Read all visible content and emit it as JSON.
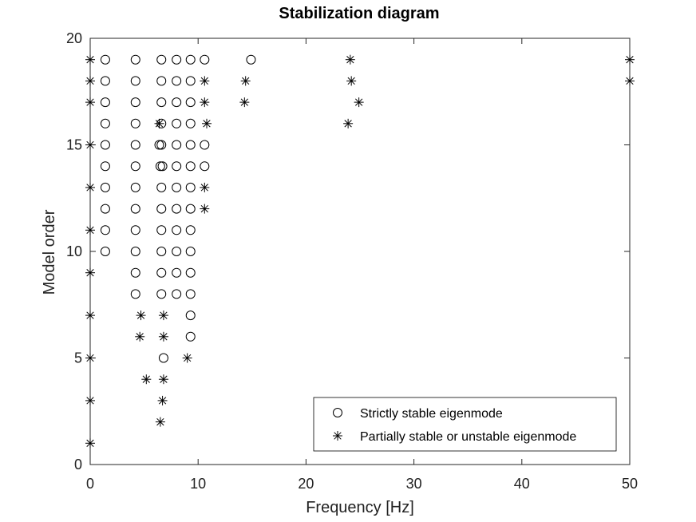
{
  "chart_data": {
    "type": "scatter",
    "title": "Stabilization diagram",
    "xlabel": "Frequency [Hz]",
    "ylabel": "Model order",
    "xlim": [
      0,
      50
    ],
    "ylim": [
      0,
      20
    ],
    "xticks": [
      0,
      10,
      20,
      30,
      40,
      50
    ],
    "yticks": [
      0,
      5,
      10,
      15,
      20
    ],
    "grid": false,
    "legend_position": "bottom-right",
    "series": [
      {
        "name": "Strictly stable eigenmode",
        "marker": "circle",
        "color": "#000000",
        "points": [
          [
            1.4,
            19
          ],
          [
            4.2,
            19
          ],
          [
            6.6,
            19
          ],
          [
            8.0,
            19
          ],
          [
            9.3,
            19
          ],
          [
            10.6,
            19
          ],
          [
            14.9,
            19
          ],
          [
            1.4,
            18
          ],
          [
            4.2,
            18
          ],
          [
            6.6,
            18
          ],
          [
            8.0,
            18
          ],
          [
            9.3,
            18
          ],
          [
            1.4,
            17
          ],
          [
            4.2,
            17
          ],
          [
            6.6,
            17
          ],
          [
            8.0,
            17
          ],
          [
            9.3,
            17
          ],
          [
            1.4,
            16
          ],
          [
            4.2,
            16
          ],
          [
            6.6,
            16
          ],
          [
            8.0,
            16
          ],
          [
            9.3,
            16
          ],
          [
            1.4,
            15
          ],
          [
            4.2,
            15
          ],
          [
            6.4,
            15
          ],
          [
            6.6,
            15
          ],
          [
            8.0,
            15
          ],
          [
            9.3,
            15
          ],
          [
            10.6,
            15
          ],
          [
            1.4,
            14
          ],
          [
            4.2,
            14
          ],
          [
            6.5,
            14
          ],
          [
            6.7,
            14
          ],
          [
            8.0,
            14
          ],
          [
            9.3,
            14
          ],
          [
            10.6,
            14
          ],
          [
            1.4,
            13
          ],
          [
            4.2,
            13
          ],
          [
            6.6,
            13
          ],
          [
            8.0,
            13
          ],
          [
            9.3,
            13
          ],
          [
            1.4,
            12
          ],
          [
            4.2,
            12
          ],
          [
            6.6,
            12
          ],
          [
            8.0,
            12
          ],
          [
            9.3,
            12
          ],
          [
            1.4,
            11
          ],
          [
            4.2,
            11
          ],
          [
            6.6,
            11
          ],
          [
            8.0,
            11
          ],
          [
            9.3,
            11
          ],
          [
            1.4,
            10
          ],
          [
            4.2,
            10
          ],
          [
            6.6,
            10
          ],
          [
            8.0,
            10
          ],
          [
            9.3,
            10
          ],
          [
            4.2,
            9
          ],
          [
            6.6,
            9
          ],
          [
            8.0,
            9
          ],
          [
            9.3,
            9
          ],
          [
            4.2,
            8
          ],
          [
            6.6,
            8
          ],
          [
            8.0,
            8
          ],
          [
            9.3,
            8
          ],
          [
            9.3,
            7
          ],
          [
            9.3,
            6
          ],
          [
            6.8,
            5
          ]
        ]
      },
      {
        "name": "Partially stable or unstable eigenmode",
        "marker": "asterisk",
        "color": "#000000",
        "points": [
          [
            0,
            19
          ],
          [
            24.1,
            19
          ],
          [
            50,
            19
          ],
          [
            0,
            18
          ],
          [
            10.6,
            18
          ],
          [
            14.4,
            18
          ],
          [
            24.2,
            18
          ],
          [
            50,
            18
          ],
          [
            0,
            17
          ],
          [
            10.6,
            17
          ],
          [
            14.3,
            17
          ],
          [
            24.9,
            17
          ],
          [
            6.4,
            16
          ],
          [
            10.8,
            16
          ],
          [
            23.9,
            16
          ],
          [
            0,
            15
          ],
          [
            0,
            13
          ],
          [
            10.6,
            13
          ],
          [
            10.6,
            12
          ],
          [
            0,
            11
          ],
          [
            0,
            9
          ],
          [
            4.7,
            7
          ],
          [
            6.8,
            7
          ],
          [
            0,
            7
          ],
          [
            4.6,
            6
          ],
          [
            6.8,
            6
          ],
          [
            0,
            5
          ],
          [
            9.0,
            5
          ],
          [
            5.2,
            4
          ],
          [
            6.8,
            4
          ],
          [
            0,
            3
          ],
          [
            6.7,
            3
          ],
          [
            6.5,
            2
          ],
          [
            0,
            1
          ]
        ]
      }
    ]
  }
}
